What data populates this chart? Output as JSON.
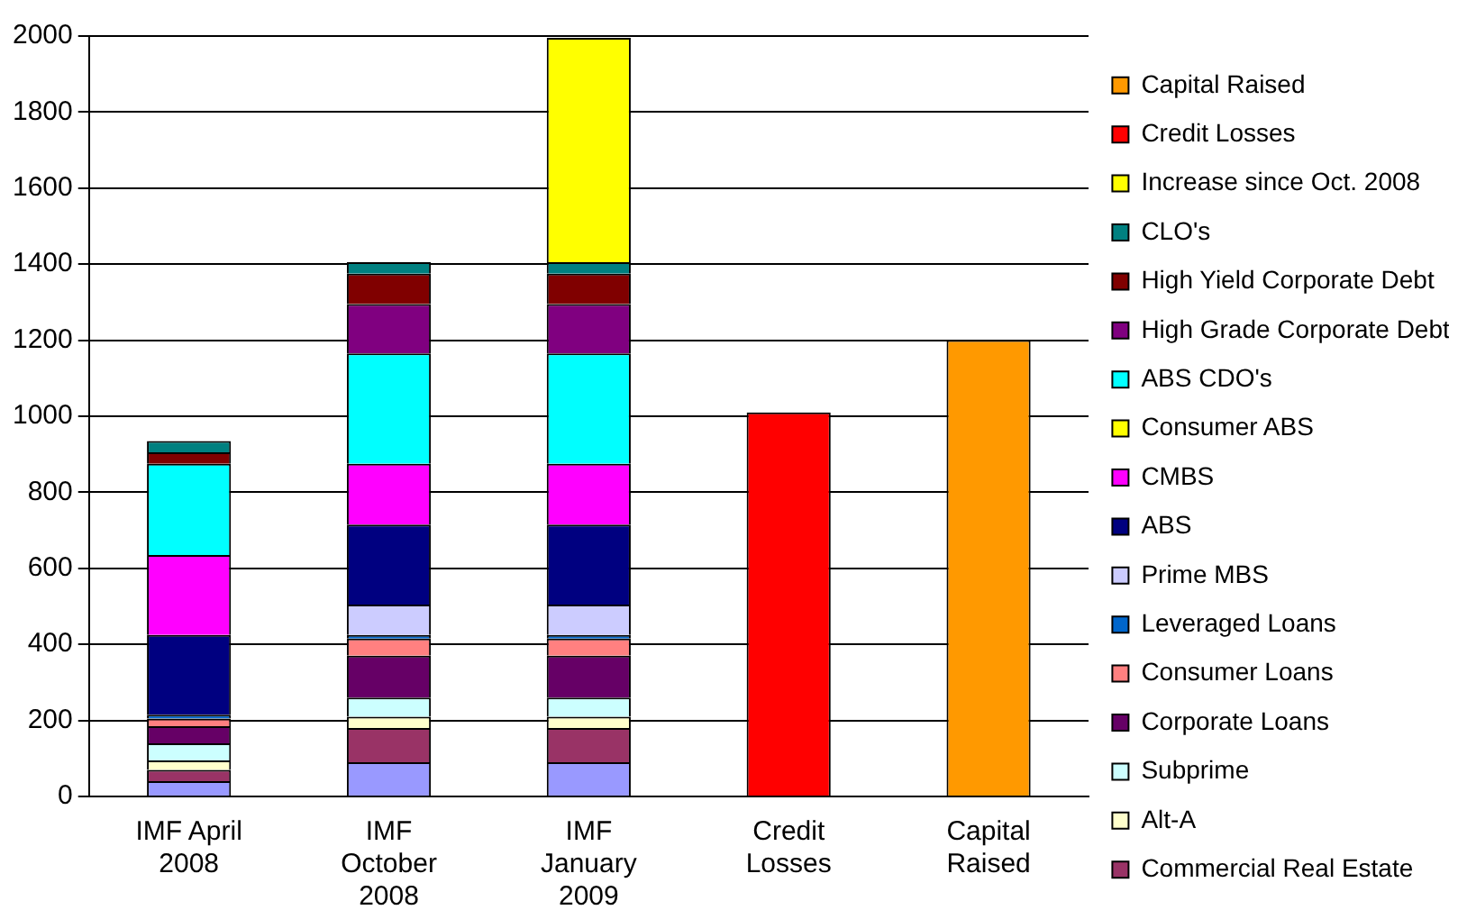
{
  "chart_data": {
    "type": "bar",
    "stacked": true,
    "categories": [
      "IMF April 2008",
      "IMF October 2008",
      "IMF January 2009",
      "Credit Losses",
      "Capital Raised"
    ],
    "ylim": [
      0,
      2000
    ],
    "yticks": [
      0,
      200,
      400,
      600,
      800,
      1000,
      1200,
      1400,
      1600,
      1800,
      2000
    ],
    "grid": "y",
    "legend": "right",
    "series": [
      {
        "color": "#9999ff",
        "values": [
          40,
          90,
          90,
          null,
          null
        ]
      },
      {
        "name": "Commercial Real Estate",
        "color": "#993366",
        "values": [
          30,
          90,
          90,
          null,
          null
        ]
      },
      {
        "name": "Alt-A",
        "color": "#ffffcc",
        "values": [
          25,
          30,
          30,
          null,
          null
        ]
      },
      {
        "name": "Subprime",
        "color": "#ccffff",
        "values": [
          45,
          50,
          50,
          null,
          null
        ]
      },
      {
        "name": "Corporate Loans",
        "color": "#660066",
        "values": [
          45,
          110,
          110,
          null,
          null
        ]
      },
      {
        "name": "Consumer Loans",
        "color": "#ff8080",
        "values": [
          20,
          45,
          45,
          null,
          null
        ]
      },
      {
        "name": "Leveraged Loans",
        "color": "#0066cc",
        "values": [
          10,
          10,
          10,
          null,
          null
        ]
      },
      {
        "name": "Prime MBS",
        "color": "#ccccff",
        "values": [
          0,
          80,
          80,
          null,
          null
        ]
      },
      {
        "name": "ABS",
        "color": "#000080",
        "values": [
          210,
          210,
          210,
          null,
          null
        ]
      },
      {
        "name": "CMBS",
        "color": "#ff00ff",
        "values": [
          210,
          160,
          160,
          null,
          null
        ]
      },
      {
        "name": "Consumer ABS",
        "color": "#ffff00",
        "values": [
          0,
          0,
          0,
          null,
          null
        ]
      },
      {
        "name": "ABS CDO's",
        "color": "#00ffff",
        "values": [
          240,
          290,
          290,
          null,
          null
        ]
      },
      {
        "name": "High Grade Corporate Debt",
        "color": "#800080",
        "values": [
          0,
          130,
          130,
          null,
          null
        ]
      },
      {
        "name": "High Yield Corporate Debt",
        "color": "#800000",
        "values": [
          30,
          80,
          80,
          null,
          null
        ]
      },
      {
        "name": "CLO's",
        "color": "#008080",
        "values": [
          30,
          30,
          30,
          null,
          null
        ]
      },
      {
        "name": "Increase since Oct. 2008",
        "color": "#ffff00",
        "values": [
          null,
          null,
          590,
          null,
          null
        ]
      },
      {
        "name": "Credit Losses",
        "color": "#ff0000",
        "values": [
          null,
          null,
          null,
          1010,
          null
        ]
      },
      {
        "name": "Capital Raised",
        "color": "#ff9900",
        "values": [
          null,
          null,
          null,
          null,
          1200
        ]
      }
    ]
  }
}
